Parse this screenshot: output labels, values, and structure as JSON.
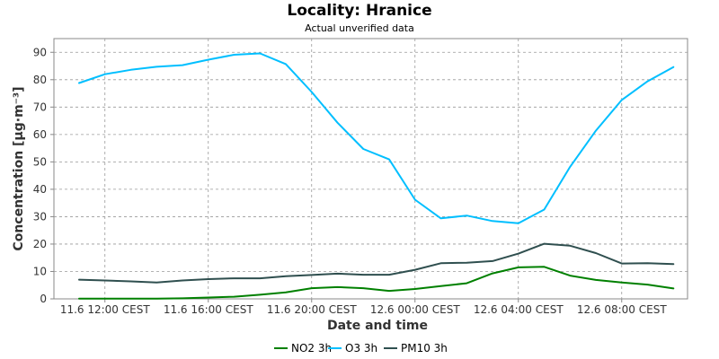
{
  "chart_data": {
    "type": "line",
    "title": "Locality: Hranice",
    "subtitle": "Actual unverified data",
    "xlabel": "Date and time",
    "ylabel": "Concentration [µg·m⁻³]",
    "ylim": [
      0,
      95
    ],
    "yticks": [
      0,
      10,
      20,
      30,
      40,
      50,
      60,
      70,
      80,
      90
    ],
    "x_hours": [
      0,
      1,
      2,
      3,
      4,
      5,
      6,
      7,
      8,
      9,
      10,
      11,
      12,
      13,
      14,
      15,
      16,
      17,
      18,
      19,
      20,
      21,
      22,
      23,
      24
    ],
    "x_ticks": [
      {
        "hour": 1,
        "label": "11.6 12:00 CEST"
      },
      {
        "hour": 5,
        "label": "11.6 16:00 CEST"
      },
      {
        "hour": 9,
        "label": "11.6 20:00 CEST"
      },
      {
        "hour": 13,
        "label": "12.6 00:00 CEST"
      },
      {
        "hour": 17,
        "label": "12.6 04:00 CEST"
      },
      {
        "hour": 21,
        "label": "12.6 08:00 CEST"
      }
    ],
    "grid": true,
    "legend_position": "bottom",
    "series": [
      {
        "name": "NO2 3h",
        "color": "#008000",
        "values": [
          0.1,
          0.1,
          0.1,
          0.1,
          0.2,
          0.5,
          0.8,
          1.5,
          2.4,
          3.9,
          4.3,
          3.9,
          2.9,
          3.6,
          4.7,
          5.7,
          9.3,
          11.5,
          11.7,
          8.5,
          6.9,
          6.0,
          5.2,
          3.8,
          null
        ]
      },
      {
        "name": "O3 3h",
        "color": "#00bfff",
        "values": [
          78.8,
          82,
          83.6,
          84.7,
          85.3,
          87.3,
          89.1,
          89.6,
          85.7,
          75.5,
          64.3,
          54.7,
          50.9,
          36.2,
          29.4,
          30.4,
          28.4,
          27.6,
          32.6,
          48.2,
          61.4,
          72.6,
          79.4,
          84.6,
          null
        ]
      },
      {
        "name": "PM10 3h",
        "color": "#2f4f4f",
        "values": [
          7.0,
          6.7,
          6.4,
          6.0,
          6.7,
          7.2,
          7.5,
          7.5,
          8.3,
          8.7,
          9.2,
          8.8,
          8.8,
          10.6,
          13.0,
          13.2,
          13.8,
          16.5,
          20.1,
          19.4,
          16.7,
          12.9,
          13.0,
          12.7,
          null
        ]
      }
    ]
  }
}
